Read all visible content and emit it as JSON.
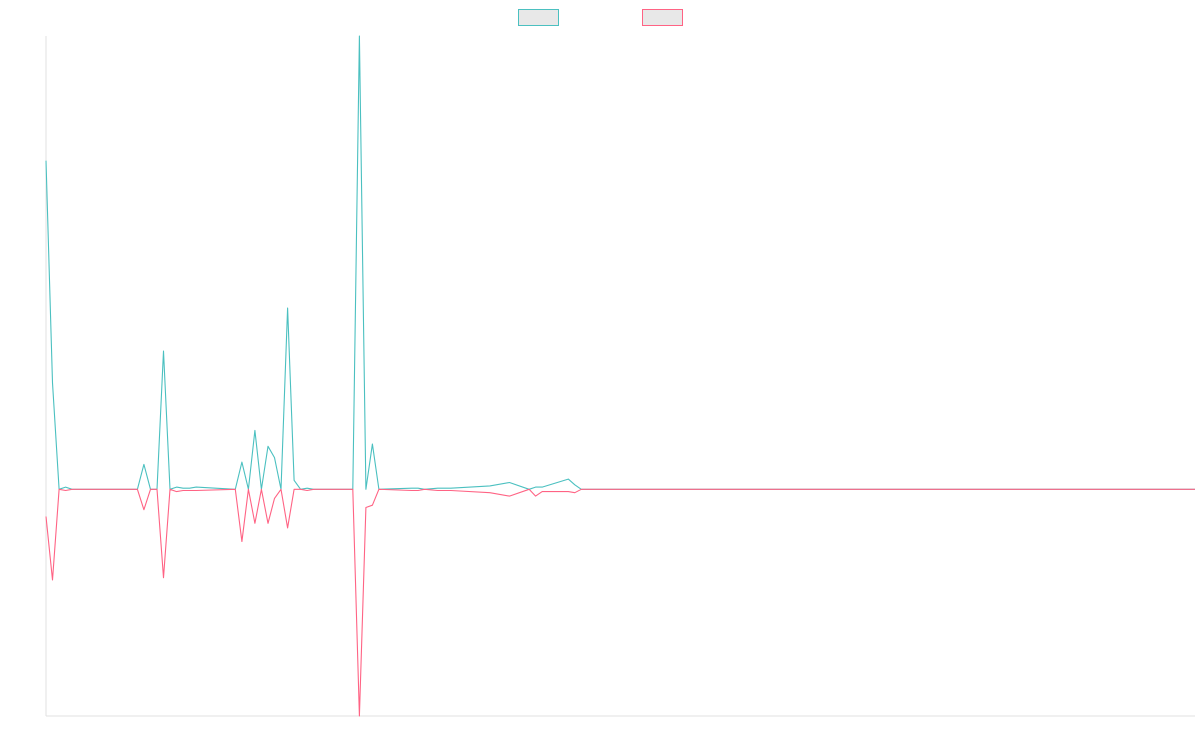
{
  "chart_data": {
    "type": "line",
    "title": "",
    "xlabel": "",
    "ylabel": "",
    "legend_position": "top-center",
    "grid": false,
    "axis_labels_visible": false,
    "colors": {
      "series_a": "#4bc0c0",
      "series_b": "#ff6384",
      "legend_fill": "#e8e8e8",
      "axis": "#e0e0e0"
    },
    "xlim": [
      0,
      176
    ],
    "ylim": [
      -10,
      20
    ],
    "series": [
      {
        "name": "",
        "color": "#4bc0c0",
        "x": [
          0,
          1,
          2,
          3,
          4,
          14,
          15,
          16,
          17,
          18,
          19,
          20,
          21,
          22,
          23,
          29,
          30,
          31,
          32,
          33,
          34,
          35,
          36,
          37,
          38,
          39,
          40,
          41,
          47,
          48,
          49,
          50,
          51,
          56,
          57,
          58,
          60,
          62,
          68,
          71,
          74,
          75,
          76,
          80,
          81,
          82,
          176
        ],
        "y": [
          14.5,
          4.7,
          0,
          0.1,
          0,
          0,
          1.1,
          0,
          0,
          6.1,
          0,
          0.1,
          0.05,
          0.05,
          0.1,
          0,
          1.2,
          0,
          2.6,
          0,
          1.9,
          1.4,
          0,
          8.0,
          0.4,
          0,
          0.05,
          0,
          0,
          20.0,
          0,
          2.0,
          0,
          0.05,
          0.05,
          0,
          0.05,
          0.05,
          0.15,
          0.3,
          0,
          0.1,
          0.1,
          0.45,
          0.2,
          0,
          0
        ]
      },
      {
        "name": "",
        "color": "#ff6384",
        "x": [
          0,
          1,
          2,
          3,
          4,
          14,
          15,
          16,
          17,
          18,
          19,
          20,
          21,
          22,
          23,
          29,
          30,
          31,
          32,
          33,
          34,
          35,
          36,
          37,
          38,
          39,
          40,
          41,
          47,
          48,
          49,
          50,
          51,
          56,
          57,
          58,
          60,
          62,
          68,
          71,
          74,
          75,
          76,
          80,
          81,
          82,
          176
        ],
        "y": [
          -1.2,
          -4.0,
          0,
          -0.05,
          0,
          0,
          -0.9,
          0,
          0,
          -3.9,
          0,
          -0.1,
          -0.05,
          -0.05,
          -0.05,
          0,
          -2.3,
          0,
          -1.5,
          0,
          -1.5,
          -0.4,
          0,
          -1.7,
          0,
          0,
          -0.05,
          0,
          0,
          -10.0,
          -0.8,
          -0.7,
          0,
          -0.05,
          -0.05,
          0,
          -0.05,
          -0.05,
          -0.15,
          -0.3,
          0,
          -0.3,
          -0.1,
          -0.1,
          -0.15,
          0,
          0
        ]
      }
    ]
  }
}
